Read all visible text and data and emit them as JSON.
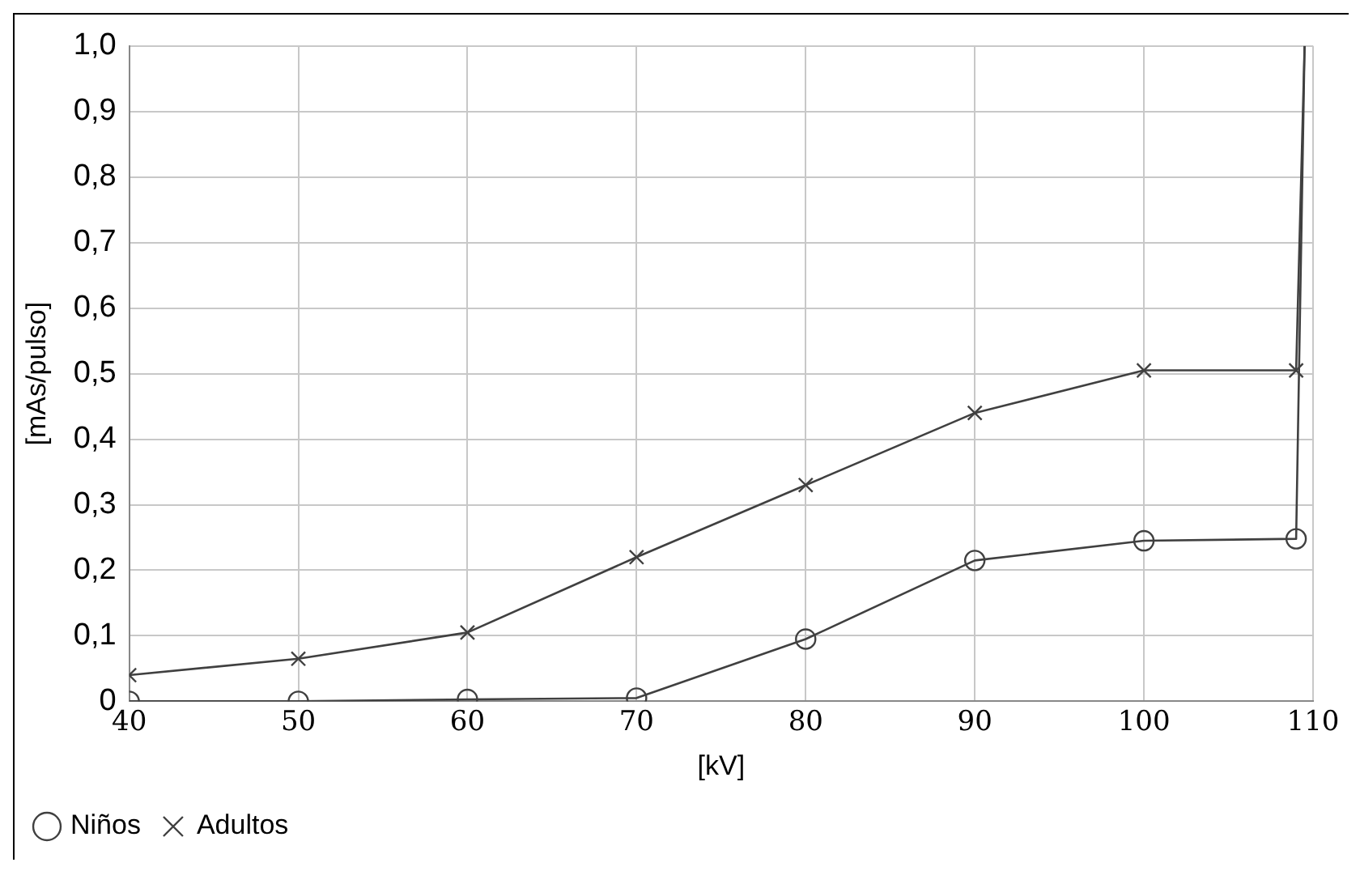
{
  "chart_data": {
    "type": "line",
    "xlabel": "[kV]",
    "ylabel": "[mAs/pulso]",
    "xlim": [
      40,
      110
    ],
    "xticks": [
      40,
      50,
      60,
      70,
      80,
      90,
      100,
      110
    ],
    "ylim": [
      0,
      1
    ],
    "yticks": [
      {
        "value": 0,
        "label": "0"
      },
      {
        "value": 0.1,
        "label": "0,1"
      },
      {
        "value": 0.2,
        "label": "0,2"
      },
      {
        "value": 0.3,
        "label": "0,3"
      },
      {
        "value": 0.4,
        "label": "0,4"
      },
      {
        "value": 0.5,
        "label": "0,5"
      },
      {
        "value": 0.6,
        "label": "0,6"
      },
      {
        "value": 0.7,
        "label": "0,7"
      },
      {
        "value": 0.8,
        "label": "0,8"
      },
      {
        "value": 0.9,
        "label": "0,9"
      },
      {
        "value": 1,
        "label": "1,0"
      }
    ],
    "grid": true,
    "legend": "bottom left",
    "line_style": "solid",
    "series": [
      {
        "name": "Niños",
        "color": "#404040",
        "marker": "circle",
        "x": [
          40,
          50,
          60,
          70,
          80,
          90,
          100,
          109,
          109.5
        ],
        "values": [
          0,
          0,
          0.003,
          0.005,
          0.095,
          0.215,
          0.245,
          0.248,
          1
        ]
      },
      {
        "name": "Adultos",
        "color": "#404040",
        "marker": "cross",
        "x": [
          40,
          50,
          60,
          70,
          80,
          90,
          100,
          109,
          109.5
        ],
        "values": [
          0.04,
          0.065,
          0.105,
          0.22,
          0.33,
          0.44,
          0.505,
          0.505,
          1
        ]
      }
    ]
  }
}
